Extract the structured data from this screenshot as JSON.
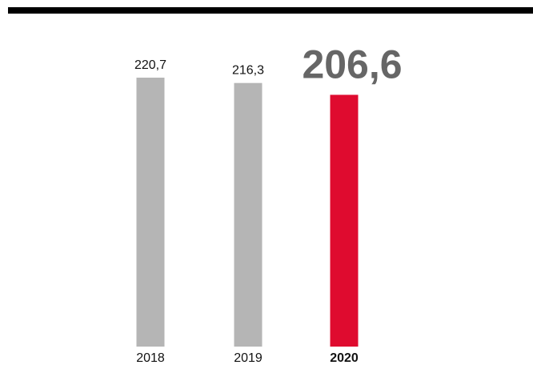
{
  "chart_data": {
    "type": "bar",
    "categories": [
      "2018",
      "2019",
      "2020"
    ],
    "values": [
      220.7,
      216.3,
      206.6
    ],
    "value_labels": [
      "220,7",
      "216,3",
      "206,6"
    ],
    "highlight_index": 2,
    "colors": {
      "default_bar": "#b5b5b5",
      "highlight_bar": "#df0b2f",
      "highlight_label": "#666666",
      "top_rule": "#000000"
    },
    "grid": false,
    "legend": "none"
  }
}
